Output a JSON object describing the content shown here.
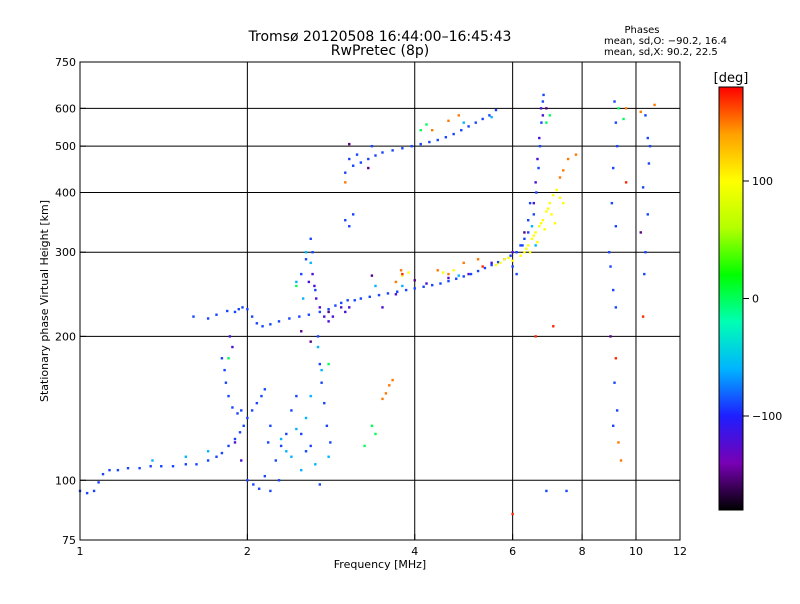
{
  "chart_data": {
    "type": "scatter",
    "title": "Tromsø 20120508 16:44:00–16:45:43",
    "subtitle": "RwPretec (8p)",
    "xlabel": "Frequency [MHz]",
    "ylabel": "Stationary phase Virtual Height [km]",
    "x_scale": "log",
    "y_scale": "log",
    "xlim": [
      1,
      12
    ],
    "ylim": [
      75,
      750
    ],
    "x_ticks": [
      1,
      2,
      4,
      6,
      8,
      10,
      12
    ],
    "y_ticks": [
      75,
      100,
      200,
      300,
      400,
      500,
      600,
      750
    ],
    "x_grid": [
      2,
      4,
      6,
      8,
      10
    ],
    "y_grid": [
      100,
      200,
      300,
      400,
      500,
      600
    ],
    "grid": true,
    "phase_box": {
      "heading": "Phases",
      "line1": "mean, sd,O: −90.2, 16.4",
      "line2": "mean, sd,X:  90.2, 22.5"
    },
    "colorbar": {
      "label": "[deg]",
      "range": [
        -180,
        180
      ],
      "ticks": [
        100,
        0,
        -100
      ],
      "tick_labels": [
        "100",
        "0",
        "−100"
      ],
      "stops": [
        "#000000",
        "#7800b4",
        "#1e1eff",
        "#00b4ff",
        "#00ffb4",
        "#00ff00",
        "#b4ff00",
        "#ffff00",
        "#ffa000",
        "#ff0000"
      ]
    },
    "series": [
      {
        "phase": -90,
        "points": [
          [
            1.0,
            95
          ],
          [
            1.03,
            94
          ],
          [
            1.06,
            95
          ],
          [
            1.08,
            99
          ],
          [
            1.1,
            103
          ],
          [
            1.13,
            105
          ],
          [
            1.17,
            105
          ],
          [
            1.22,
            106
          ],
          [
            1.28,
            106
          ],
          [
            1.34,
            107
          ],
          [
            1.4,
            107
          ],
          [
            1.47,
            107
          ],
          [
            1.55,
            108
          ],
          [
            1.62,
            108
          ],
          [
            1.7,
            110
          ],
          [
            1.76,
            112
          ],
          [
            1.8,
            114
          ],
          [
            1.85,
            118
          ],
          [
            1.9,
            122
          ],
          [
            1.94,
            126
          ],
          [
            1.97,
            130
          ],
          [
            2.0,
            135
          ],
          [
            2.04,
            140
          ],
          [
            2.08,
            145
          ],
          [
            2.12,
            150
          ],
          [
            2.15,
            155
          ],
          [
            1.8,
            180
          ],
          [
            1.82,
            170
          ],
          [
            1.83,
            160
          ],
          [
            1.85,
            150
          ],
          [
            1.88,
            142
          ],
          [
            1.92,
            138
          ],
          [
            1.95,
            140
          ],
          [
            1.9,
            225
          ],
          [
            1.93,
            228
          ],
          [
            1.96,
            230
          ],
          [
            2.0,
            228
          ],
          [
            2.04,
            220
          ],
          [
            2.08,
            213
          ],
          [
            2.13,
            210
          ],
          [
            2.2,
            212
          ],
          [
            2.28,
            215
          ],
          [
            2.38,
            218
          ],
          [
            2.48,
            220
          ],
          [
            2.58,
            222
          ],
          [
            2.7,
            225
          ],
          [
            2.8,
            228
          ],
          [
            2.88,
            232
          ],
          [
            2.95,
            235
          ],
          [
            3.03,
            238
          ],
          [
            3.12,
            238
          ],
          [
            3.2,
            240
          ],
          [
            3.32,
            242
          ],
          [
            3.45,
            244
          ],
          [
            3.58,
            246
          ],
          [
            3.72,
            248
          ],
          [
            3.86,
            250
          ],
          [
            4.0,
            252
          ],
          [
            4.15,
            254
          ],
          [
            4.3,
            256
          ],
          [
            4.45,
            258
          ],
          [
            4.6,
            261
          ],
          [
            4.75,
            264
          ],
          [
            4.9,
            267
          ],
          [
            5.05,
            270
          ],
          [
            5.2,
            274
          ],
          [
            5.35,
            278
          ],
          [
            5.5,
            282
          ],
          [
            5.65,
            286
          ],
          [
            5.8,
            290
          ],
          [
            5.95,
            295
          ],
          [
            6.1,
            300
          ],
          [
            6.25,
            310
          ],
          [
            6.4,
            330
          ],
          [
            6.55,
            360
          ],
          [
            6.62,
            400
          ],
          [
            6.68,
            450
          ],
          [
            6.72,
            500
          ],
          [
            6.76,
            560
          ],
          [
            6.8,
            620
          ],
          [
            6.82,
            640
          ],
          [
            1.6,
            220
          ],
          [
            1.7,
            218
          ],
          [
            1.76,
            222
          ],
          [
            1.84,
            226
          ],
          [
            2.5,
            270
          ],
          [
            2.55,
            290
          ],
          [
            2.6,
            320
          ],
          [
            2.62,
            300
          ],
          [
            2.65,
            250
          ],
          [
            2.68,
            200
          ],
          [
            2.7,
            175
          ],
          [
            2.72,
            160
          ],
          [
            2.75,
            145
          ],
          [
            2.78,
            130
          ],
          [
            2.82,
            120
          ],
          [
            2.4,
            140
          ],
          [
            2.45,
            150
          ],
          [
            2.35,
            125
          ],
          [
            2.3,
            118
          ],
          [
            2.2,
            130
          ],
          [
            2.18,
            120
          ],
          [
            2.25,
            110
          ],
          [
            2.5,
            125
          ],
          [
            2.55,
            115
          ],
          [
            2.6,
            118
          ],
          [
            2.0,
            100
          ],
          [
            2.05,
            98
          ],
          [
            2.1,
            96
          ],
          [
            2.15,
            102
          ],
          [
            2.2,
            95
          ],
          [
            2.28,
            100
          ],
          [
            2.7,
            98
          ],
          [
            3.0,
            440
          ],
          [
            3.1,
            455
          ],
          [
            3.2,
            462
          ],
          [
            3.3,
            470
          ],
          [
            3.4,
            478
          ],
          [
            3.5,
            485
          ],
          [
            3.65,
            490
          ],
          [
            3.8,
            495
          ],
          [
            3.95,
            500
          ],
          [
            4.1,
            505
          ],
          [
            4.25,
            510
          ],
          [
            4.4,
            515
          ],
          [
            4.55,
            522
          ],
          [
            4.7,
            530
          ],
          [
            4.85,
            540
          ],
          [
            5.0,
            550
          ],
          [
            5.15,
            560
          ],
          [
            5.3,
            570
          ],
          [
            5.45,
            580
          ],
          [
            5.6,
            595
          ],
          [
            3.05,
            470
          ],
          [
            3.15,
            480
          ],
          [
            3.35,
            500
          ],
          [
            3.0,
            350
          ],
          [
            3.05,
            340
          ],
          [
            3.1,
            360
          ],
          [
            6.0,
            280
          ],
          [
            6.1,
            270
          ],
          [
            6.2,
            310
          ],
          [
            6.3,
            320
          ],
          [
            6.4,
            350
          ],
          [
            6.45,
            380
          ],
          [
            9.15,
            620
          ],
          [
            9.2,
            560
          ],
          [
            9.25,
            500
          ],
          [
            9.1,
            450
          ],
          [
            9.05,
            380
          ],
          [
            9.2,
            340
          ],
          [
            9.0,
            280
          ],
          [
            8.95,
            300
          ],
          [
            9.1,
            250
          ],
          [
            9.2,
            230
          ],
          [
            9.15,
            160
          ],
          [
            9.25,
            140
          ],
          [
            9.1,
            130
          ],
          [
            10.4,
            580
          ],
          [
            10.5,
            520
          ],
          [
            10.6,
            500
          ],
          [
            10.55,
            460
          ],
          [
            10.3,
            410
          ],
          [
            10.5,
            360
          ],
          [
            10.4,
            300
          ],
          [
            10.35,
            270
          ],
          [
            7.5,
            95
          ],
          [
            6.9,
            95
          ]
        ]
      },
      {
        "phase": -120,
        "points": [
          [
            2.62,
            270
          ],
          [
            2.64,
            255
          ],
          [
            2.66,
            240
          ],
          [
            2.7,
            230
          ],
          [
            2.58,
            260
          ],
          [
            2.75,
            220
          ],
          [
            2.8,
            215
          ],
          [
            2.85,
            220
          ],
          [
            3.5,
            230
          ],
          [
            3.7,
            245
          ],
          [
            4.2,
            258
          ],
          [
            4.6,
            265
          ],
          [
            5.0,
            270
          ],
          [
            5.5,
            285
          ],
          [
            6.0,
            300
          ],
          [
            6.7,
            520
          ],
          [
            6.75,
            600
          ],
          [
            6.8,
            580
          ],
          [
            6.65,
            470
          ],
          [
            6.6,
            420
          ],
          [
            6.55,
            380
          ],
          [
            2.95,
            230
          ],
          [
            3.0,
            225
          ],
          [
            3.05,
            230
          ],
          [
            1.95,
            110
          ],
          [
            1.9,
            120
          ],
          [
            1.86,
            200
          ],
          [
            1.88,
            190
          ]
        ]
      },
      {
        "phase": -60,
        "points": [
          [
            2.45,
            260
          ],
          [
            2.55,
            300
          ],
          [
            2.6,
            285
          ],
          [
            2.52,
            240
          ],
          [
            2.68,
            190
          ],
          [
            2.72,
            170
          ],
          [
            2.6,
            150
          ],
          [
            2.55,
            135
          ],
          [
            2.45,
            128
          ],
          [
            2.35,
            115
          ],
          [
            2.3,
            122
          ],
          [
            2.4,
            112
          ],
          [
            2.5,
            105
          ],
          [
            2.65,
            108
          ],
          [
            2.8,
            112
          ],
          [
            1.35,
            110
          ],
          [
            1.55,
            112
          ],
          [
            1.7,
            115
          ],
          [
            3.8,
            255
          ],
          [
            4.8,
            268
          ],
          [
            4.9,
            560
          ],
          [
            5.5,
            575
          ],
          [
            3.4,
            255
          ],
          [
            6.5,
            340
          ],
          [
            6.6,
            310
          ]
        ]
      },
      {
        "phase": 100,
        "points": [
          [
            6.3,
            300
          ],
          [
            6.4,
            310
          ],
          [
            6.5,
            320
          ],
          [
            6.6,
            330
          ],
          [
            6.7,
            340
          ],
          [
            6.8,
            350
          ],
          [
            6.9,
            365
          ],
          [
            7.0,
            380
          ],
          [
            7.1,
            395
          ],
          [
            7.2,
            405
          ],
          [
            6.2,
            295
          ],
          [
            6.35,
            305
          ],
          [
            6.55,
            325
          ],
          [
            6.75,
            345
          ],
          [
            6.95,
            370
          ],
          [
            7.05,
            360
          ],
          [
            7.15,
            345
          ],
          [
            6.85,
            335
          ],
          [
            6.65,
            315
          ],
          [
            6.45,
            300
          ],
          [
            5.7,
            285
          ],
          [
            5.8,
            290
          ],
          [
            5.9,
            292
          ],
          [
            6.0,
            288
          ],
          [
            5.6,
            282
          ],
          [
            3.8,
            268
          ],
          [
            3.9,
            272
          ],
          [
            4.5,
            272
          ],
          [
            4.7,
            275
          ],
          [
            7.3,
            390
          ],
          [
            7.4,
            380
          ]
        ]
      },
      {
        "phase": 150,
        "points": [
          [
            3.5,
            148
          ],
          [
            3.55,
            152
          ],
          [
            3.6,
            158
          ],
          [
            3.65,
            162
          ],
          [
            3.7,
            260
          ],
          [
            3.78,
            275
          ],
          [
            4.4,
            275
          ],
          [
            4.6,
            270
          ],
          [
            4.9,
            285
          ],
          [
            5.2,
            290
          ],
          [
            7.3,
            430
          ],
          [
            7.4,
            445
          ],
          [
            7.55,
            470
          ],
          [
            7.8,
            480
          ],
          [
            4.3,
            540
          ],
          [
            4.6,
            565
          ],
          [
            4.8,
            580
          ],
          [
            3.0,
            420
          ],
          [
            9.4,
            110
          ],
          [
            9.3,
            120
          ],
          [
            10.2,
            590
          ],
          [
            10.8,
            610
          ],
          [
            9.6,
            600
          ]
        ]
      },
      {
        "phase": -150,
        "points": [
          [
            3.05,
            505
          ],
          [
            3.3,
            450
          ],
          [
            2.8,
            225
          ],
          [
            2.5,
            205
          ],
          [
            2.6,
            195
          ],
          [
            6.3,
            330
          ],
          [
            6.9,
            600
          ],
          [
            9.0,
            200
          ],
          [
            10.2,
            330
          ],
          [
            3.35,
            268
          ],
          [
            4.0,
            262
          ]
        ]
      },
      {
        "phase": 0,
        "points": [
          [
            3.35,
            130
          ],
          [
            3.4,
            125
          ],
          [
            3.25,
            118
          ],
          [
            1.85,
            180
          ],
          [
            2.8,
            175
          ],
          [
            4.1,
            540
          ],
          [
            4.2,
            555
          ],
          [
            2.45,
            255
          ],
          [
            6.9,
            560
          ],
          [
            7.0,
            580
          ],
          [
            9.3,
            600
          ],
          [
            9.5,
            570
          ]
        ]
      },
      {
        "phase": 170,
        "points": [
          [
            3.8,
            270
          ],
          [
            5.3,
            280
          ],
          [
            6.6,
            200
          ],
          [
            7.1,
            210
          ],
          [
            10.3,
            220
          ],
          [
            6.0,
            85
          ],
          [
            9.2,
            180
          ],
          [
            9.6,
            420
          ]
        ]
      }
    ]
  }
}
